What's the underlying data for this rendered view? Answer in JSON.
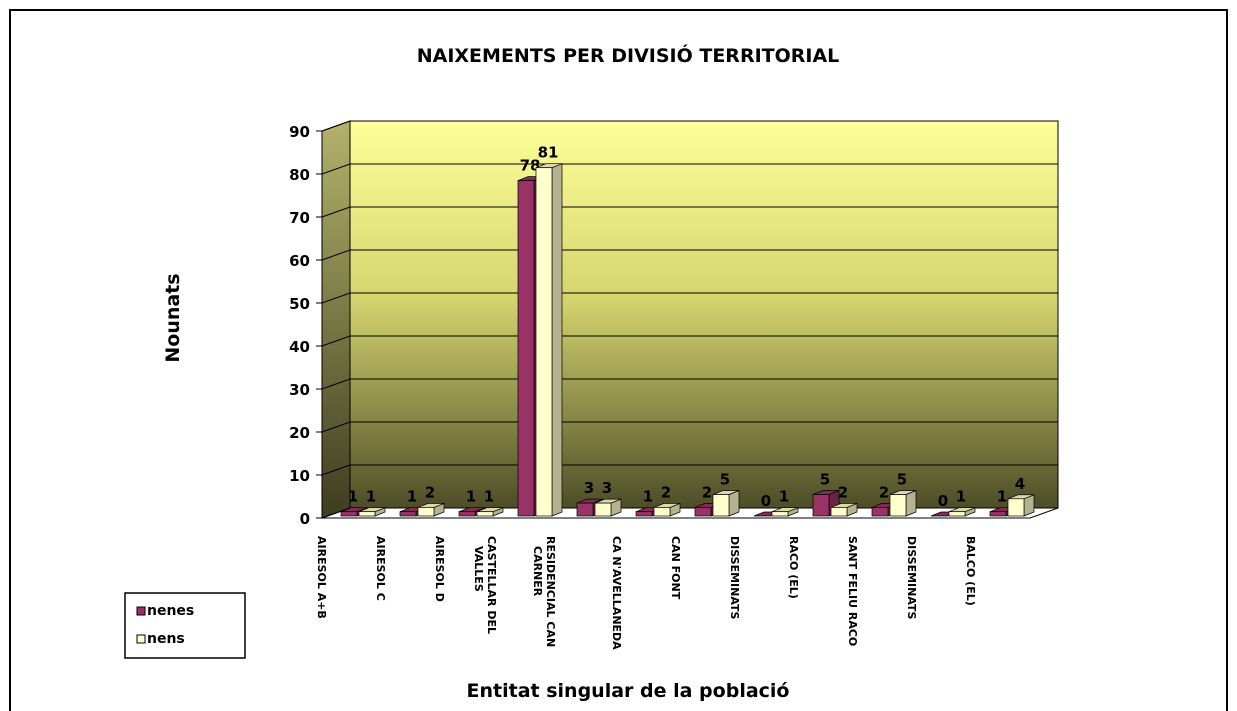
{
  "chart_data": {
    "type": "bar3d",
    "title": "NAIXEMENTS PER DIVISIÓ TERRITORIAL",
    "y_label": "Nounats",
    "x_label": "Entitat singular de la població",
    "categories": [
      "AIRESOL A+B",
      "AIRESOL C",
      "AIRESOL D",
      "CASTELLAR DEL VALLES",
      "RESIDENCIAL CAN CARNER",
      "CA N'AVELLANEDA",
      "CAN FONT",
      "DISSEMINATS",
      "RACO (EL)",
      "SANT FELIU RACO",
      "DISSEMINATS",
      "BALCO (EL)"
    ],
    "series": [
      {
        "name": "nenes",
        "color": "#993366",
        "values": [
          1,
          1,
          1,
          78,
          3,
          1,
          2,
          0,
          5,
          2,
          0,
          1
        ]
      },
      {
        "name": "nens",
        "color": "#ffffcc",
        "values": [
          1,
          2,
          1,
          81,
          3,
          2,
          5,
          1,
          2,
          5,
          1,
          4
        ]
      }
    ],
    "ylim": [
      0,
      90
    ],
    "yticks": [
      0,
      10,
      20,
      30,
      40,
      50,
      60,
      70,
      80,
      90
    ],
    "grid": true,
    "legend": "bottom-left"
  }
}
